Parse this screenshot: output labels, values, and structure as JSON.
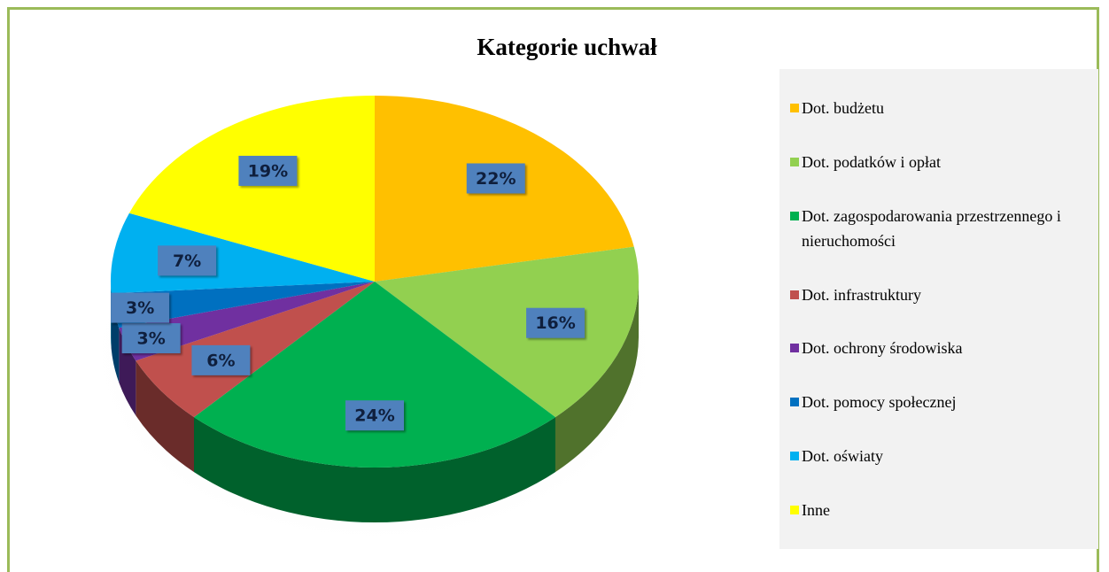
{
  "chart_data": {
    "type": "pie",
    "title": "Kategorie uchwał",
    "categories": [
      "Dot. budżetu",
      "Dot. podatków i opłat",
      "Dot. zagospodarowania przestrzennego i nieruchomości",
      "Dot. infrastruktury",
      "Dot. ochrony środowiska",
      "Dot. pomocy społecznej",
      "Dot. oświaty",
      "Inne"
    ],
    "values": [
      22,
      16,
      24,
      6,
      3,
      3,
      7,
      19
    ],
    "value_labels": [
      "22%",
      "16%",
      "24%",
      "6%",
      "3%",
      "3%",
      "7%",
      "19%"
    ],
    "colors": [
      "#ffc000",
      "#92d050",
      "#00b050",
      "#c0504d",
      "#7030a0",
      "#0070c0",
      "#00b0f0",
      "#ffff00"
    ],
    "legend": "right"
  }
}
